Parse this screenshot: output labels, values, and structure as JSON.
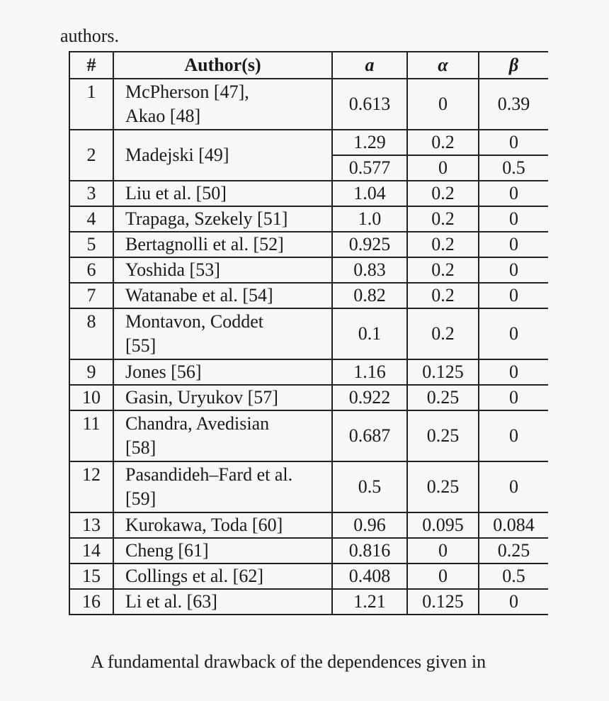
{
  "top_text": "authors.",
  "bottom_text": "A fundamental drawback of the dependences given in",
  "table": {
    "headers": [
      "#",
      "Author(s)",
      "a",
      "α",
      "β"
    ],
    "rows": [
      {
        "num": "1",
        "author": [
          "McPherson [47],",
          "Akao [48]"
        ],
        "values": [
          [
            "0.613",
            "0",
            "0.39"
          ]
        ]
      },
      {
        "num": "2",
        "author": [
          "Madejski [49]"
        ],
        "values": [
          [
            "1.29",
            "0.2",
            "0"
          ],
          [
            "0.577",
            "0",
            "0.5"
          ]
        ]
      },
      {
        "num": "3",
        "author": [
          "Liu et al. [50]"
        ],
        "values": [
          [
            "1.04",
            "0.2",
            "0"
          ]
        ]
      },
      {
        "num": "4",
        "author": [
          "Trapaga, Szekely [51]"
        ],
        "values": [
          [
            "1.0",
            "0.2",
            "0"
          ]
        ]
      },
      {
        "num": "5",
        "author": [
          "Bertagnolli et al. [52]"
        ],
        "values": [
          [
            "0.925",
            "0.2",
            "0"
          ]
        ]
      },
      {
        "num": "6",
        "author": [
          "Yoshida [53]"
        ],
        "values": [
          [
            "0.83",
            "0.2",
            "0"
          ]
        ]
      },
      {
        "num": "7",
        "author": [
          "Watanabe et al. [54]"
        ],
        "values": [
          [
            "0.82",
            "0.2",
            "0"
          ]
        ]
      },
      {
        "num": "8",
        "author": [
          "Montavon, Coddet",
          "[55]"
        ],
        "values": [
          [
            "0.1",
            "0.2",
            "0"
          ]
        ]
      },
      {
        "num": "9",
        "author": [
          "Jones [56]"
        ],
        "values": [
          [
            "1.16",
            "0.125",
            "0"
          ]
        ]
      },
      {
        "num": "10",
        "author": [
          "Gasin, Uryukov [57]"
        ],
        "values": [
          [
            "0.922",
            "0.25",
            "0"
          ]
        ]
      },
      {
        "num": "11",
        "author": [
          "Chandra, Avedisian",
          "[58]"
        ],
        "values": [
          [
            "0.687",
            "0.25",
            "0"
          ]
        ]
      },
      {
        "num": "12",
        "author": [
          "Pasandideh–Fard et al.",
          "[59]"
        ],
        "values": [
          [
            "0.5",
            "0.25",
            "0"
          ]
        ]
      },
      {
        "num": "13",
        "author": [
          "Kurokawa, Toda [60]"
        ],
        "values": [
          [
            "0.96",
            "0.095",
            "0.084"
          ]
        ]
      },
      {
        "num": "14",
        "author": [
          "Cheng [61]"
        ],
        "values": [
          [
            "0.816",
            "0",
            "0.25"
          ]
        ]
      },
      {
        "num": "15",
        "author": [
          "Collings et al. [62]"
        ],
        "values": [
          [
            "0.408",
            "0",
            "0.5"
          ]
        ]
      },
      {
        "num": "16",
        "author": [
          "Li et al. [63]"
        ],
        "values": [
          [
            "1.21",
            "0.125",
            "0"
          ]
        ]
      }
    ]
  }
}
